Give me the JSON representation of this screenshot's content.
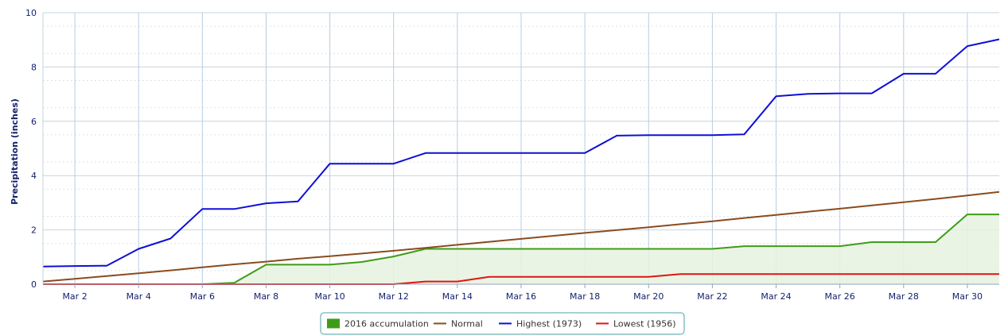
{
  "chart_data": {
    "type": "line",
    "title": "",
    "xlabel": "",
    "ylabel": "Precipitation (inches)",
    "xlim": [
      1,
      31
    ],
    "ylim": [
      0,
      10
    ],
    "x": [
      1,
      2,
      3,
      4,
      5,
      6,
      7,
      8,
      9,
      10,
      11,
      12,
      13,
      14,
      15,
      16,
      17,
      18,
      19,
      20,
      21,
      22,
      23,
      24,
      25,
      26,
      27,
      28,
      29,
      30,
      31
    ],
    "x_ticks": [
      2,
      4,
      6,
      8,
      10,
      12,
      14,
      16,
      18,
      20,
      22,
      24,
      26,
      28,
      30
    ],
    "x_tick_labels": [
      "Mar 2",
      "Mar 4",
      "Mar 6",
      "Mar 8",
      "Mar 10",
      "Mar 12",
      "Mar 14",
      "Mar 16",
      "Mar 18",
      "Mar 20",
      "Mar 22",
      "Mar 24",
      "Mar 26",
      "Mar 28",
      "Mar 30"
    ],
    "y_ticks": [
      0,
      2,
      4,
      6,
      8,
      10
    ],
    "y_tick_labels": [
      "0",
      "2",
      "4",
      "6",
      "8",
      "10"
    ],
    "grid": true,
    "legend_position": "bottom-center",
    "series": [
      {
        "name": "2016 accumulation",
        "style": "area",
        "color": "#3f9c18",
        "fill": "#e6f2df",
        "values": [
          0,
          0,
          0,
          0,
          0,
          0,
          0.05,
          0.72,
          0.72,
          0.72,
          0.82,
          1.02,
          1.3,
          1.3,
          1.3,
          1.3,
          1.3,
          1.3,
          1.3,
          1.3,
          1.3,
          1.3,
          1.4,
          1.4,
          1.4,
          1.4,
          1.55,
          1.55,
          1.55,
          2.57,
          2.57
        ]
      },
      {
        "name": "Normal",
        "style": "line",
        "color": "#8a4b1f",
        "values": [
          0.1,
          0.2,
          0.3,
          0.4,
          0.51,
          0.62,
          0.73,
          0.83,
          0.94,
          1.03,
          1.13,
          1.23,
          1.34,
          1.45,
          1.56,
          1.67,
          1.78,
          1.89,
          1.99,
          2.1,
          2.21,
          2.32,
          2.44,
          2.55,
          2.67,
          2.78,
          2.9,
          3.02,
          3.14,
          3.27,
          3.4
        ]
      },
      {
        "name": "Highest (1973)",
        "style": "line",
        "color": "#0f0fd6",
        "values": [
          0.65,
          0.67,
          0.68,
          1.3,
          1.68,
          2.77,
          2.77,
          2.98,
          3.05,
          4.44,
          4.44,
          4.44,
          4.83,
          4.83,
          4.83,
          4.83,
          4.83,
          4.83,
          5.47,
          5.49,
          5.49,
          5.49,
          5.52,
          6.92,
          7.01,
          7.03,
          7.03,
          7.75,
          7.75,
          8.77,
          9.02
        ]
      },
      {
        "name": "Lowest (1956)",
        "style": "line",
        "color": "#e01414",
        "values": [
          0,
          0,
          0,
          0,
          0,
          0,
          0,
          0,
          0,
          0,
          0,
          0,
          0.1,
          0.1,
          0.27,
          0.27,
          0.27,
          0.27,
          0.27,
          0.27,
          0.37,
          0.37,
          0.37,
          0.37,
          0.37,
          0.37,
          0.37,
          0.37,
          0.37,
          0.37,
          0.37
        ]
      }
    ]
  }
}
